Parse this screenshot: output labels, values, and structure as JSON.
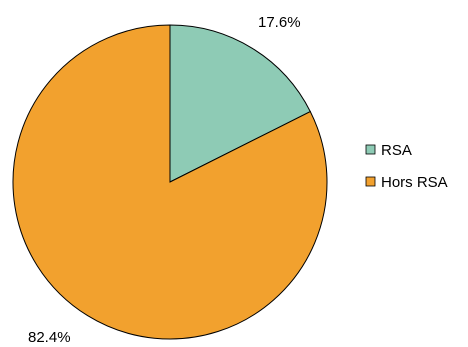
{
  "chart_data": {
    "type": "pie",
    "categories": [
      "RSA",
      "Hors RSA"
    ],
    "values": [
      17.6,
      82.4
    ],
    "data_labels": [
      "17.6%",
      "82.4%"
    ],
    "colors": [
      "#8ecbb5",
      "#f2a12e"
    ],
    "legend": {
      "placement": "right",
      "entries": [
        "RSA",
        "Hors RSA"
      ]
    }
  }
}
